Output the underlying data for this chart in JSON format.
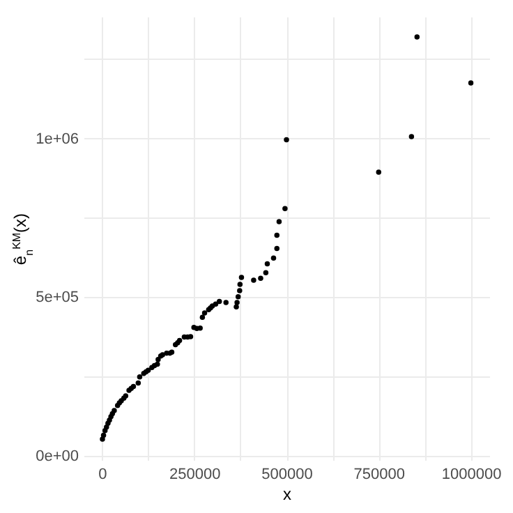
{
  "chart_data": {
    "type": "scatter",
    "xlabel": "x",
    "ylabel": "ê$_{n}$$^{KM}$(x)",
    "x": [
      1000,
      4000,
      8000,
      12000,
      16000,
      20000,
      24000,
      28000,
      33000,
      42000,
      47000,
      52000,
      59000,
      64000,
      73000,
      79000,
      85000,
      98000,
      102000,
      113000,
      119000,
      125000,
      135000,
      142000,
      150000,
      152000,
      159000,
      164000,
      175000,
      184000,
      189000,
      199000,
      205000,
      210000,
      223000,
      232000,
      240000,
      249000,
      257000,
      266000,
      272000,
      278000,
      289000,
      294000,
      299000,
      308000,
      318000,
      336000,
      364000,
      366000,
      369000,
      373000,
      374000,
      378000,
      411000,
      430000,
      444000,
      448000,
      465000,
      474000,
      474000,
      480000,
      496000,
      500000,
      750000,
      839000,
      854000,
      1000000
    ],
    "values": [
      52000,
      64000,
      79000,
      90000,
      102000,
      112000,
      123000,
      132000,
      142000,
      158000,
      166000,
      173000,
      181000,
      188000,
      206000,
      212000,
      218000,
      229000,
      248000,
      259000,
      264000,
      269000,
      278000,
      284000,
      288000,
      303000,
      314000,
      318000,
      323000,
      323000,
      326000,
      350000,
      356000,
      363000,
      374000,
      374000,
      375000,
      404000,
      401000,
      402000,
      436000,
      450000,
      460000,
      466000,
      472000,
      478000,
      486000,
      483000,
      469000,
      483000,
      501000,
      520000,
      540000,
      562000,
      553000,
      559000,
      577000,
      605000,
      623000,
      653000,
      695000,
      738000,
      779000,
      996000,
      894000,
      1006000,
      1320000,
      1175000
    ],
    "color": "#000000",
    "marker": "circle",
    "xlim": [
      -50000,
      1050000
    ],
    "xticks": [
      0,
      {
        "value": 125000,
        "label": null
      },
      250000,
      {
        "value": 375000,
        "label": null
      },
      500000,
      {
        "value": 625000,
        "label": null
      },
      750000,
      {
        "value": 875000,
        "label": null
      },
      1000000
    ],
    "ylim": [
      -14000,
      1384000
    ],
    "yticks": [
      {
        "value": 0,
        "label": "0e+00"
      },
      {
        "value": 250000,
        "label": null
      },
      {
        "value": 500000,
        "label": "5e+05"
      },
      {
        "value": 750000,
        "label": null
      },
      {
        "value": 1000000,
        "label": "1e+06"
      },
      {
        "value": 1250000,
        "label": null
      }
    ],
    "grid": true
  }
}
